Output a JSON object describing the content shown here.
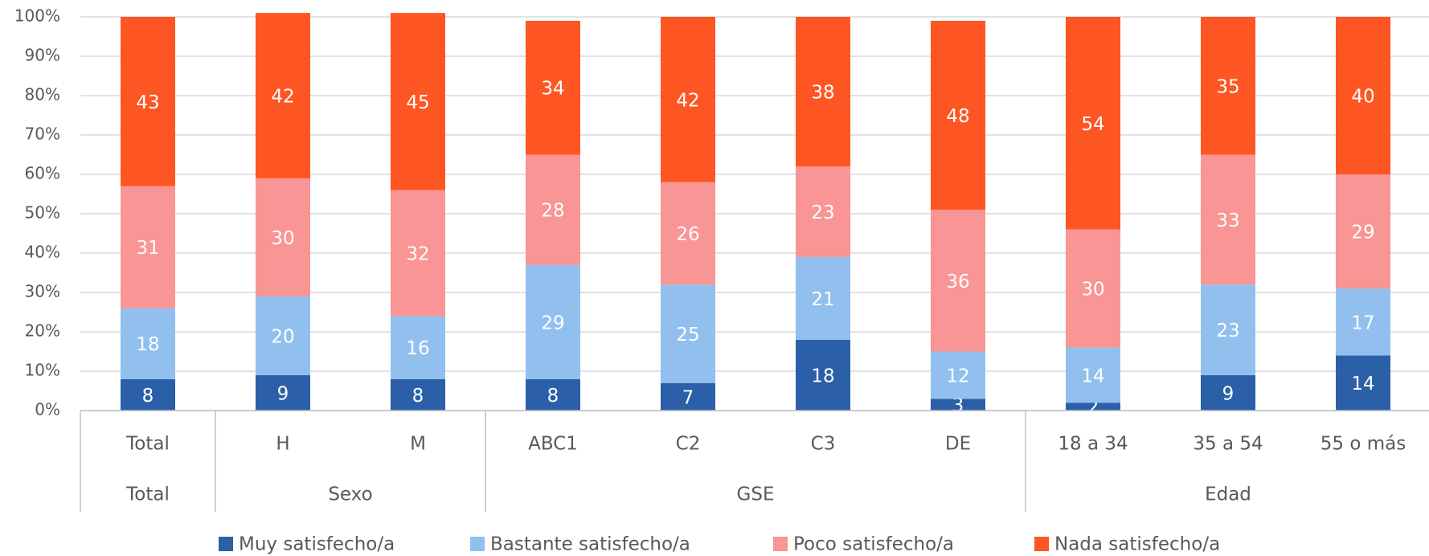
{
  "chart_data": {
    "type": "stacked_bar",
    "categories": [
      "Total",
      "H",
      "M",
      "ABC1",
      "C2",
      "C3",
      "DE",
      "18 a 34",
      "35 a 54",
      "55 o más"
    ],
    "groups": [
      {
        "label": "Total",
        "count": 1
      },
      {
        "label": "Sexo",
        "count": 2
      },
      {
        "label": "GSE",
        "count": 4
      },
      {
        "label": "Edad",
        "count": 3
      }
    ],
    "series": [
      {
        "name": "Muy satisfecho/a",
        "color": "#2b5fa8",
        "values": [
          8,
          9,
          8,
          8,
          7,
          18,
          3,
          2,
          9,
          14
        ]
      },
      {
        "name": "Bastante satisfecho/a",
        "color": "#92c0ee",
        "values": [
          18,
          20,
          16,
          29,
          25,
          21,
          12,
          14,
          23,
          17
        ]
      },
      {
        "name": "Poco satisfecho/a",
        "color": "#f99594",
        "values": [
          31,
          30,
          32,
          28,
          26,
          23,
          36,
          30,
          33,
          29
        ]
      },
      {
        "name": "Nada satisfecho/a",
        "color": "#fe5623",
        "values": [
          43,
          42,
          45,
          34,
          42,
          38,
          48,
          54,
          35,
          40
        ]
      }
    ],
    "ylim": [
      0,
      100
    ],
    "yticks": [
      {
        "value": 0,
        "label": "0%"
      },
      {
        "value": 10,
        "label": "10%"
      },
      {
        "value": 20,
        "label": "20%"
      },
      {
        "value": 30,
        "label": "30%"
      },
      {
        "value": 40,
        "label": "40%"
      },
      {
        "value": 50,
        "label": "50%"
      },
      {
        "value": 60,
        "label": "60%"
      },
      {
        "value": 70,
        "label": "70%"
      },
      {
        "value": 80,
        "label": "80%"
      },
      {
        "value": 90,
        "label": "90%"
      },
      {
        "value": 100,
        "label": "100%"
      }
    ],
    "grid": true,
    "legend": "bottom"
  }
}
